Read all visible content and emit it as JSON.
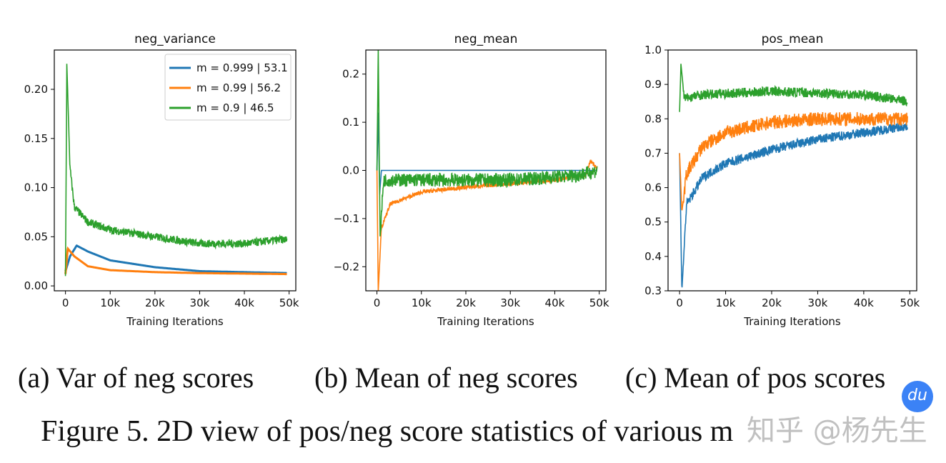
{
  "chart_data": [
    {
      "type": "line",
      "title": "neg_variance",
      "xlabel": "Training Iterations",
      "ylabel": "",
      "xlim": [
        -2500,
        51500
      ],
      "ylim": [
        -0.005,
        0.24
      ],
      "xticks": [
        "0",
        "10k",
        "20k",
        "30k",
        "40k",
        "50k"
      ],
      "yticks": [
        "0.00",
        "0.05",
        "0.10",
        "0.15",
        "0.20"
      ],
      "legend": "top-right",
      "series": [
        {
          "name": "m = 0.999 | 53.1",
          "color": "#1f77b4",
          "x": [
            0,
            1000,
            2500,
            5000,
            10000,
            20000,
            30000,
            40000,
            50000
          ],
          "y": [
            0.015,
            0.03,
            0.041,
            0.035,
            0.026,
            0.019,
            0.015,
            0.014,
            0.013
          ]
        },
        {
          "name": "m = 0.99 | 56.2",
          "color": "#ff7f0e",
          "x": [
            0,
            500,
            2000,
            5000,
            10000,
            20000,
            30000,
            50000
          ],
          "y": [
            0.012,
            0.038,
            0.03,
            0.02,
            0.016,
            0.014,
            0.013,
            0.012
          ]
        },
        {
          "name": "m = 0.9 | 46.5",
          "color": "#2ca02c",
          "x": [
            0,
            300,
            1000,
            2000,
            5000,
            10000,
            20000,
            30000,
            40000,
            48000,
            50000
          ],
          "y": [
            0.01,
            0.226,
            0.12,
            0.08,
            0.065,
            0.057,
            0.05,
            0.043,
            0.043,
            0.047,
            0.047
          ]
        }
      ]
    },
    {
      "type": "line",
      "title": "neg_mean",
      "xlabel": "Training Iterations",
      "ylabel": "",
      "xlim": [
        -2500,
        51500
      ],
      "ylim": [
        -0.25,
        0.25
      ],
      "xticks": [
        "0",
        "10k",
        "20k",
        "30k",
        "40k",
        "50k"
      ],
      "yticks": [
        "0.2",
        "0.1",
        "0.0",
        "−0.1",
        "−0.2"
      ],
      "series": [
        {
          "color": "#1f77b4",
          "x": [
            0,
            300,
            600,
            1000,
            49000,
            50000
          ],
          "y": [
            0,
            0.12,
            -0.05,
            0,
            0,
            0
          ]
        },
        {
          "color": "#ff7f0e",
          "x": [
            0,
            300,
            1000,
            3000,
            10000,
            20000,
            40000,
            47000,
            48000,
            50000
          ],
          "y": [
            0,
            -0.25,
            -0.12,
            -0.07,
            -0.045,
            -0.035,
            -0.02,
            -0.01,
            0.02,
            0
          ]
        },
        {
          "color": "#2ca02c",
          "x": [
            0,
            300,
            700,
            1500,
            10000,
            30000,
            45000,
            50000
          ],
          "y": [
            0,
            0.25,
            -0.14,
            -0.02,
            -0.02,
            -0.02,
            -0.01,
            0
          ]
        }
      ]
    },
    {
      "type": "line",
      "title": "pos_mean",
      "xlabel": "Training Iterations",
      "ylabel": "",
      "xlim": [
        -2500,
        51500
      ],
      "ylim": [
        0.3,
        1.0
      ],
      "xticks": [
        "0",
        "10k",
        "20k",
        "30k",
        "40k",
        "50k"
      ],
      "yticks": [
        "1.0",
        "0.9",
        "0.8",
        "0.7",
        "0.6",
        "0.5",
        "0.4",
        "0.3"
      ],
      "series": [
        {
          "color": "#1f77b4",
          "x": [
            0,
            500,
            1500,
            5000,
            10000,
            20000,
            30000,
            40000,
            50000
          ],
          "y": [
            0.7,
            0.3,
            0.55,
            0.63,
            0.67,
            0.71,
            0.74,
            0.76,
            0.78
          ]
        },
        {
          "color": "#ff7f0e",
          "x": [
            0,
            500,
            1500,
            5000,
            10000,
            20000,
            30000,
            40000,
            50000
          ],
          "y": [
            0.7,
            0.53,
            0.64,
            0.72,
            0.76,
            0.79,
            0.8,
            0.8,
            0.8
          ]
        },
        {
          "color": "#2ca02c",
          "x": [
            0,
            300,
            1000,
            5000,
            20000,
            40000,
            50000
          ],
          "y": [
            0.82,
            0.96,
            0.86,
            0.87,
            0.88,
            0.87,
            0.85
          ]
        }
      ]
    }
  ],
  "captions": [
    "(a)  Var of neg scores",
    "(b)  Mean of neg scores",
    "(c)  Mean of pos scores"
  ],
  "figure_caption": "Figure 5. 2D view of pos/neg score statistics of various m",
  "watermark": "知乎 @杨先生",
  "badge": "du"
}
